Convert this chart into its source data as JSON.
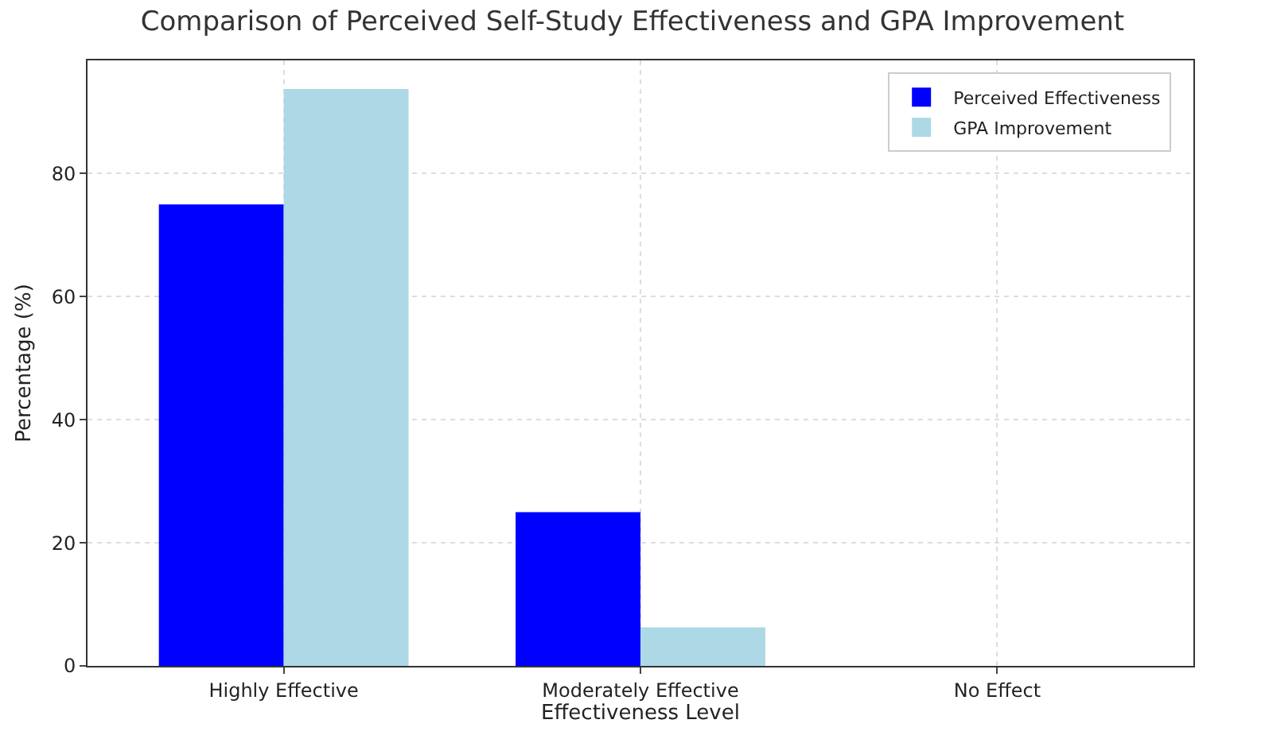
{
  "chart_data": {
    "type": "bar",
    "title": "Comparison of Perceived Self-Study Effectiveness and GPA Improvement",
    "xlabel": "Effectiveness Level",
    "ylabel": "Percentage (%)",
    "categories": [
      "Highly Effective",
      "Moderately Effective",
      "No Effect"
    ],
    "series": [
      {
        "name": "Perceived Effectiveness",
        "color": "#0000ff",
        "values": [
          75,
          25,
          0
        ]
      },
      {
        "name": "GPA Improvement",
        "color": "#add8e6",
        "values": [
          93.75,
          6.25,
          0
        ]
      }
    ],
    "ylim": [
      0,
      98.4
    ],
    "yticks": [
      0,
      20,
      40,
      60,
      80
    ],
    "grid": true,
    "legend": "top right"
  }
}
